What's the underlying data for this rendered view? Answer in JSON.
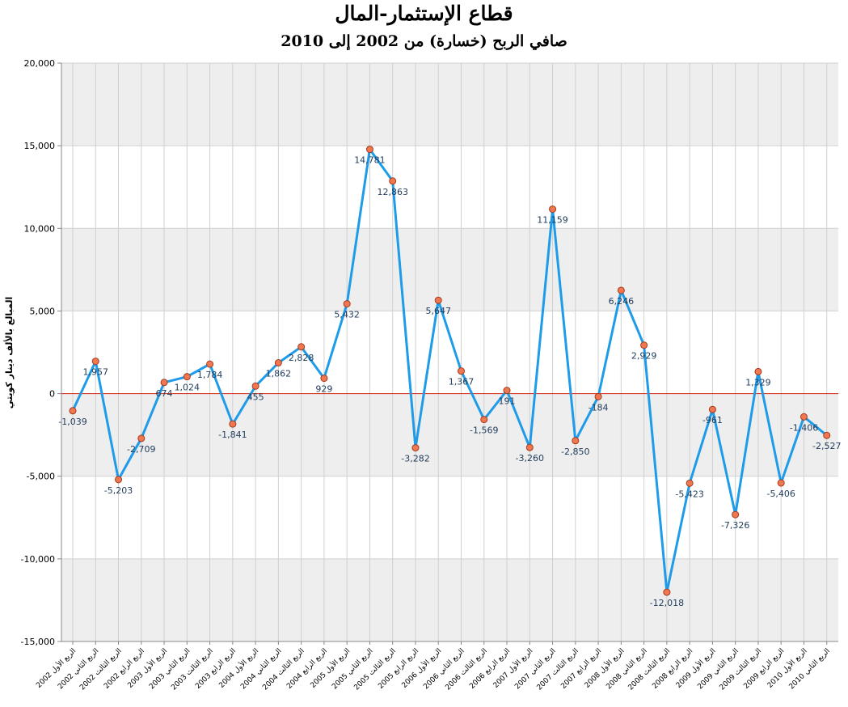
{
  "chart_data": {
    "type": "line",
    "title": "قطاع الإستثمار-المال",
    "subtitle": "صافي الربح (خسارة) من 2002 إلى 2010",
    "ylabel": "المبالغ بالألف دينار كويتي",
    "xlabel": "",
    "ylim": [
      -15000,
      20000
    ],
    "ytick_step": 5000,
    "ytick_labels": [
      "-15,000",
      "-10,000",
      "-5,000",
      "0",
      "5,000",
      "10,000",
      "15,000",
      "20,000"
    ],
    "grid": true,
    "legend": "none",
    "colors": {
      "line": "#1E9BE9",
      "marker_fill": "#F07850",
      "marker_stroke": "#A33A1F",
      "zero_line": "#D63A2A",
      "band": "#EEEEEE",
      "grid": "#D0D0D0",
      "label": "#1F3B5B"
    },
    "categories": [
      "الربع الأول 2002",
      "الربع الثاني 2002",
      "الربع الثالث 2002",
      "الربع الرابع 2002",
      "الربع الأول 2003",
      "الربع الثاني 2003",
      "الربع الثالث 2003",
      "الربع الرابع 2003",
      "الربع الأول 2004",
      "الربع الثاني 2004",
      "الربع الثالث 2004",
      "الربع الرابع 2004",
      "الربع الأول 2005",
      "الربع الثاني 2005",
      "الربع الثالث 2005",
      "الربع الرابع 2005",
      "الربع الأول 2006",
      "الربع الثاني 2006",
      "الربع الثالث 2006",
      "الربع الرابع 2006",
      "الربع الأول 2007",
      "الربع الثاني 2007",
      "الربع الثالث 2007",
      "الربع الرابع 2007",
      "الربع الأول 2008",
      "الربع الثاني 2008",
      "الربع الثالث 2008",
      "الربع الرابع 2008",
      "الربع الأول 2009",
      "الربع الثاني 2009",
      "الربع الثالث 2009",
      "الربع الرابع 2009",
      "الربع الأول 2010",
      "الربع الثاني 2010"
    ],
    "values": [
      -1039,
      1957,
      -5203,
      -2709,
      674,
      1024,
      1784,
      -1841,
      455,
      1862,
      2828,
      929,
      5432,
      14781,
      12863,
      -3282,
      5647,
      1367,
      -1569,
      191,
      -3260,
      11159,
      -2850,
      -184,
      6246,
      2929,
      -12018,
      -5423,
      -961,
      -7326,
      1329,
      -5406,
      -1406,
      -2527
    ],
    "value_labels": [
      "-1,039",
      "1,957",
      "-5,203",
      "-2,709",
      "674",
      "1,024",
      "1,784",
      "-1,841",
      "455",
      "1,862",
      "2,828",
      "929",
      "5,432",
      "14,781",
      "12,863",
      "-3,282",
      "5,647",
      "1,367",
      "-1,569",
      "191",
      "-3,260",
      "11,159",
      "-2,850",
      "-184",
      "6,246",
      "2,929",
      "-12,018",
      "-5,423",
      "-961",
      "-7,326",
      "1,329",
      "-5,406",
      "-1,406",
      "-2,527"
    ]
  }
}
